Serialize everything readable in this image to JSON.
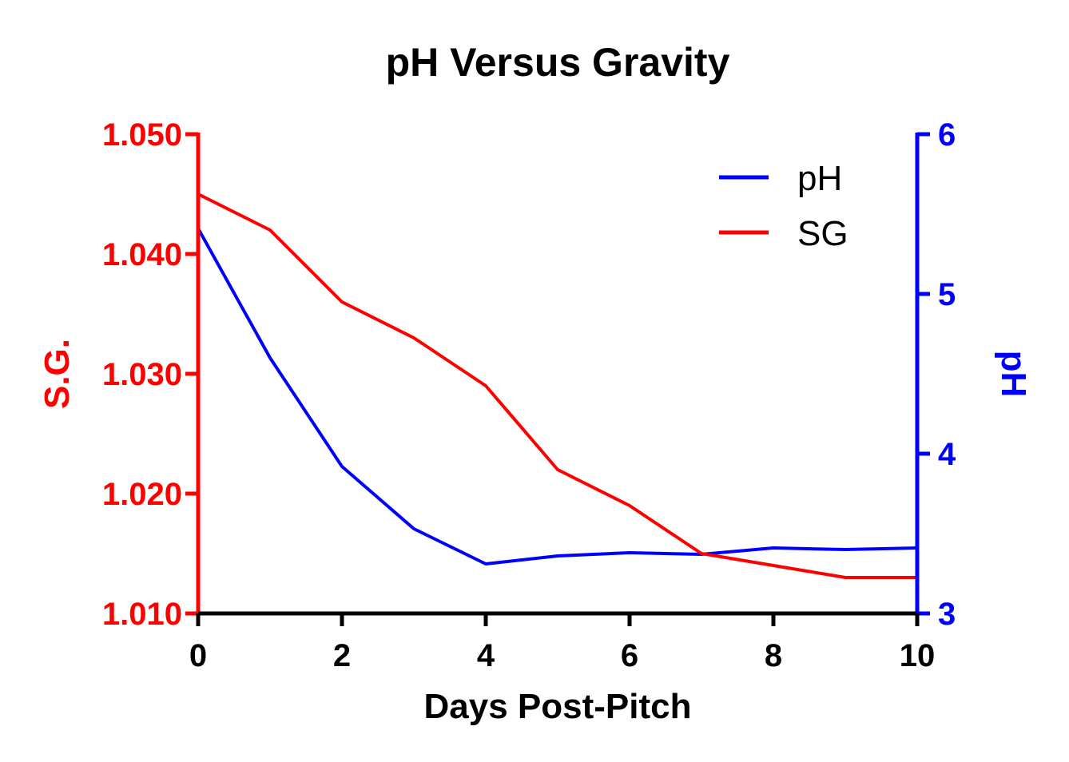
{
  "chart_data": {
    "type": "line",
    "title": "pH Versus Gravity",
    "xlabel": "Days Post-Pitch",
    "ylabel_left": "S.G.",
    "ylabel_right": "pH",
    "xlim": [
      0,
      10
    ],
    "x_ticks": [
      0,
      2,
      4,
      6,
      8,
      10
    ],
    "x_tick_labels": [
      "0",
      "2",
      "4",
      "6",
      "8",
      "10"
    ],
    "ylim_left": [
      1.01,
      1.05
    ],
    "y_left_ticks": [
      1.01,
      1.02,
      1.03,
      1.04,
      1.05
    ],
    "y_left_tick_labels": [
      "1.010",
      "1.020",
      "1.030",
      "1.040",
      "1.050"
    ],
    "ylim_right": [
      3,
      6
    ],
    "y_right_ticks": [
      3,
      4,
      5,
      6
    ],
    "y_right_tick_labels": [
      "3",
      "4",
      "5",
      "6"
    ],
    "grid": false,
    "legend_position": "top-right",
    "series": [
      {
        "name": "pH",
        "axis": "right",
        "color": "#0000ff",
        "x": [
          0,
          1,
          2,
          3,
          4,
          5,
          6,
          7,
          8,
          9,
          10
        ],
        "values": [
          5.41,
          4.6,
          3.92,
          3.53,
          3.31,
          3.36,
          3.38,
          3.37,
          3.41,
          3.4,
          3.41
        ]
      },
      {
        "name": "SG",
        "axis": "left",
        "color": "#ff0000",
        "x": [
          0,
          1,
          2,
          3,
          4,
          5,
          6,
          7,
          8,
          9,
          10
        ],
        "values": [
          1.045,
          1.042,
          1.036,
          1.033,
          1.029,
          1.022,
          1.019,
          1.015,
          1.014,
          1.013,
          1.013
        ]
      }
    ],
    "colors": {
      "left_axis": "#ff0000",
      "right_axis": "#0000ff",
      "x_axis": "#000000"
    }
  }
}
